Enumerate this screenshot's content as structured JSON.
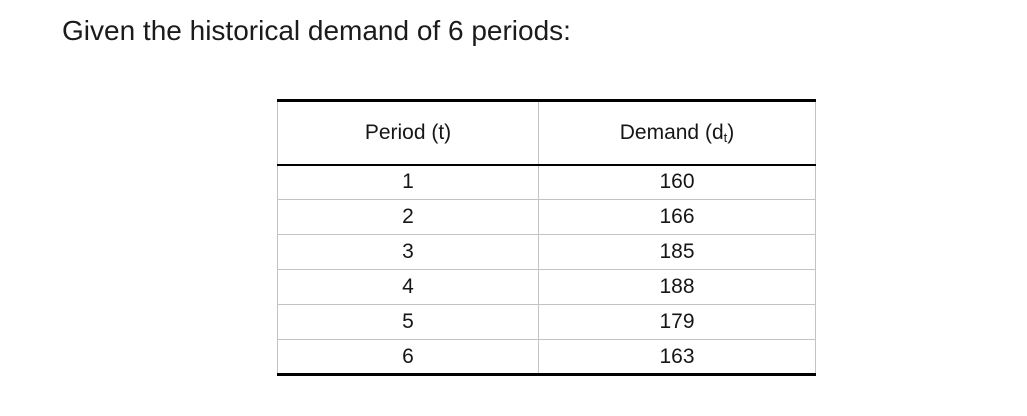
{
  "page": {
    "title": "Given the historical demand of 6 periods:"
  },
  "table": {
    "headers": {
      "period": "Period (t)",
      "demand_prefix": "Demand (d",
      "demand_subscript": "t",
      "demand_suffix": ")"
    },
    "rows": [
      {
        "period": "1",
        "demand": "160"
      },
      {
        "period": "2",
        "demand": "166"
      },
      {
        "period": "3",
        "demand": "185"
      },
      {
        "period": "4",
        "demand": "188"
      },
      {
        "period": "5",
        "demand": "179"
      },
      {
        "period": "6",
        "demand": "163"
      }
    ]
  },
  "chart_data": {
    "type": "table",
    "title": "Historical demand of 6 periods",
    "columns": [
      "Period (t)",
      "Demand (dt)"
    ],
    "x": [
      1,
      2,
      3,
      4,
      5,
      6
    ],
    "values": [
      160,
      166,
      185,
      188,
      179,
      163
    ]
  },
  "colors": {
    "background": "#ffffff",
    "text": "#1b1b1b",
    "border_dark": "#000000",
    "border_light": "#c3c3c3"
  }
}
